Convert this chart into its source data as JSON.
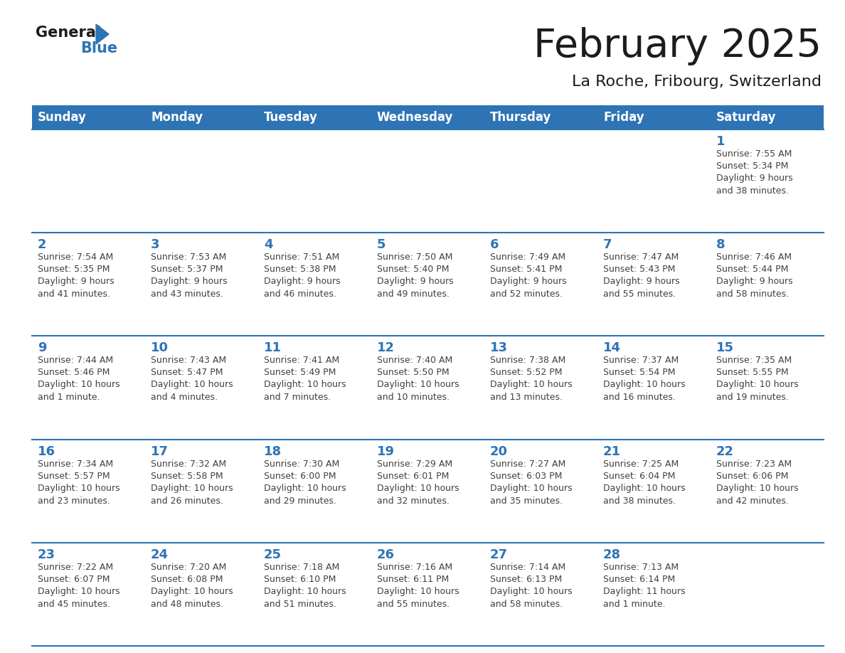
{
  "title": "February 2025",
  "subtitle": "La Roche, Fribourg, Switzerland",
  "header_bg": "#2E74B5",
  "header_text_color": "#FFFFFF",
  "cell_bg": "#FFFFFF",
  "day_number_color": "#2E74B5",
  "text_color": "#404040",
  "separator_color": "#2E74B5",
  "days_of_week": [
    "Sunday",
    "Monday",
    "Tuesday",
    "Wednesday",
    "Thursday",
    "Friday",
    "Saturday"
  ],
  "weeks": [
    [
      {
        "day": null,
        "sunrise": null,
        "sunset": null,
        "daylight": null
      },
      {
        "day": null,
        "sunrise": null,
        "sunset": null,
        "daylight": null
      },
      {
        "day": null,
        "sunrise": null,
        "sunset": null,
        "daylight": null
      },
      {
        "day": null,
        "sunrise": null,
        "sunset": null,
        "daylight": null
      },
      {
        "day": null,
        "sunrise": null,
        "sunset": null,
        "daylight": null
      },
      {
        "day": null,
        "sunrise": null,
        "sunset": null,
        "daylight": null
      },
      {
        "day": 1,
        "sunrise": "Sunrise: 7:55 AM",
        "sunset": "Sunset: 5:34 PM",
        "daylight": "Daylight: 9 hours\nand 38 minutes."
      }
    ],
    [
      {
        "day": 2,
        "sunrise": "Sunrise: 7:54 AM",
        "sunset": "Sunset: 5:35 PM",
        "daylight": "Daylight: 9 hours\nand 41 minutes."
      },
      {
        "day": 3,
        "sunrise": "Sunrise: 7:53 AM",
        "sunset": "Sunset: 5:37 PM",
        "daylight": "Daylight: 9 hours\nand 43 minutes."
      },
      {
        "day": 4,
        "sunrise": "Sunrise: 7:51 AM",
        "sunset": "Sunset: 5:38 PM",
        "daylight": "Daylight: 9 hours\nand 46 minutes."
      },
      {
        "day": 5,
        "sunrise": "Sunrise: 7:50 AM",
        "sunset": "Sunset: 5:40 PM",
        "daylight": "Daylight: 9 hours\nand 49 minutes."
      },
      {
        "day": 6,
        "sunrise": "Sunrise: 7:49 AM",
        "sunset": "Sunset: 5:41 PM",
        "daylight": "Daylight: 9 hours\nand 52 minutes."
      },
      {
        "day": 7,
        "sunrise": "Sunrise: 7:47 AM",
        "sunset": "Sunset: 5:43 PM",
        "daylight": "Daylight: 9 hours\nand 55 minutes."
      },
      {
        "day": 8,
        "sunrise": "Sunrise: 7:46 AM",
        "sunset": "Sunset: 5:44 PM",
        "daylight": "Daylight: 9 hours\nand 58 minutes."
      }
    ],
    [
      {
        "day": 9,
        "sunrise": "Sunrise: 7:44 AM",
        "sunset": "Sunset: 5:46 PM",
        "daylight": "Daylight: 10 hours\nand 1 minute."
      },
      {
        "day": 10,
        "sunrise": "Sunrise: 7:43 AM",
        "sunset": "Sunset: 5:47 PM",
        "daylight": "Daylight: 10 hours\nand 4 minutes."
      },
      {
        "day": 11,
        "sunrise": "Sunrise: 7:41 AM",
        "sunset": "Sunset: 5:49 PM",
        "daylight": "Daylight: 10 hours\nand 7 minutes."
      },
      {
        "day": 12,
        "sunrise": "Sunrise: 7:40 AM",
        "sunset": "Sunset: 5:50 PM",
        "daylight": "Daylight: 10 hours\nand 10 minutes."
      },
      {
        "day": 13,
        "sunrise": "Sunrise: 7:38 AM",
        "sunset": "Sunset: 5:52 PM",
        "daylight": "Daylight: 10 hours\nand 13 minutes."
      },
      {
        "day": 14,
        "sunrise": "Sunrise: 7:37 AM",
        "sunset": "Sunset: 5:54 PM",
        "daylight": "Daylight: 10 hours\nand 16 minutes."
      },
      {
        "day": 15,
        "sunrise": "Sunrise: 7:35 AM",
        "sunset": "Sunset: 5:55 PM",
        "daylight": "Daylight: 10 hours\nand 19 minutes."
      }
    ],
    [
      {
        "day": 16,
        "sunrise": "Sunrise: 7:34 AM",
        "sunset": "Sunset: 5:57 PM",
        "daylight": "Daylight: 10 hours\nand 23 minutes."
      },
      {
        "day": 17,
        "sunrise": "Sunrise: 7:32 AM",
        "sunset": "Sunset: 5:58 PM",
        "daylight": "Daylight: 10 hours\nand 26 minutes."
      },
      {
        "day": 18,
        "sunrise": "Sunrise: 7:30 AM",
        "sunset": "Sunset: 6:00 PM",
        "daylight": "Daylight: 10 hours\nand 29 minutes."
      },
      {
        "day": 19,
        "sunrise": "Sunrise: 7:29 AM",
        "sunset": "Sunset: 6:01 PM",
        "daylight": "Daylight: 10 hours\nand 32 minutes."
      },
      {
        "day": 20,
        "sunrise": "Sunrise: 7:27 AM",
        "sunset": "Sunset: 6:03 PM",
        "daylight": "Daylight: 10 hours\nand 35 minutes."
      },
      {
        "day": 21,
        "sunrise": "Sunrise: 7:25 AM",
        "sunset": "Sunset: 6:04 PM",
        "daylight": "Daylight: 10 hours\nand 38 minutes."
      },
      {
        "day": 22,
        "sunrise": "Sunrise: 7:23 AM",
        "sunset": "Sunset: 6:06 PM",
        "daylight": "Daylight: 10 hours\nand 42 minutes."
      }
    ],
    [
      {
        "day": 23,
        "sunrise": "Sunrise: 7:22 AM",
        "sunset": "Sunset: 6:07 PM",
        "daylight": "Daylight: 10 hours\nand 45 minutes."
      },
      {
        "day": 24,
        "sunrise": "Sunrise: 7:20 AM",
        "sunset": "Sunset: 6:08 PM",
        "daylight": "Daylight: 10 hours\nand 48 minutes."
      },
      {
        "day": 25,
        "sunrise": "Sunrise: 7:18 AM",
        "sunset": "Sunset: 6:10 PM",
        "daylight": "Daylight: 10 hours\nand 51 minutes."
      },
      {
        "day": 26,
        "sunrise": "Sunrise: 7:16 AM",
        "sunset": "Sunset: 6:11 PM",
        "daylight": "Daylight: 10 hours\nand 55 minutes."
      },
      {
        "day": 27,
        "sunrise": "Sunrise: 7:14 AM",
        "sunset": "Sunset: 6:13 PM",
        "daylight": "Daylight: 10 hours\nand 58 minutes."
      },
      {
        "day": 28,
        "sunrise": "Sunrise: 7:13 AM",
        "sunset": "Sunset: 6:14 PM",
        "daylight": "Daylight: 11 hours\nand 1 minute."
      },
      {
        "day": null,
        "sunrise": null,
        "sunset": null,
        "daylight": null
      }
    ]
  ]
}
